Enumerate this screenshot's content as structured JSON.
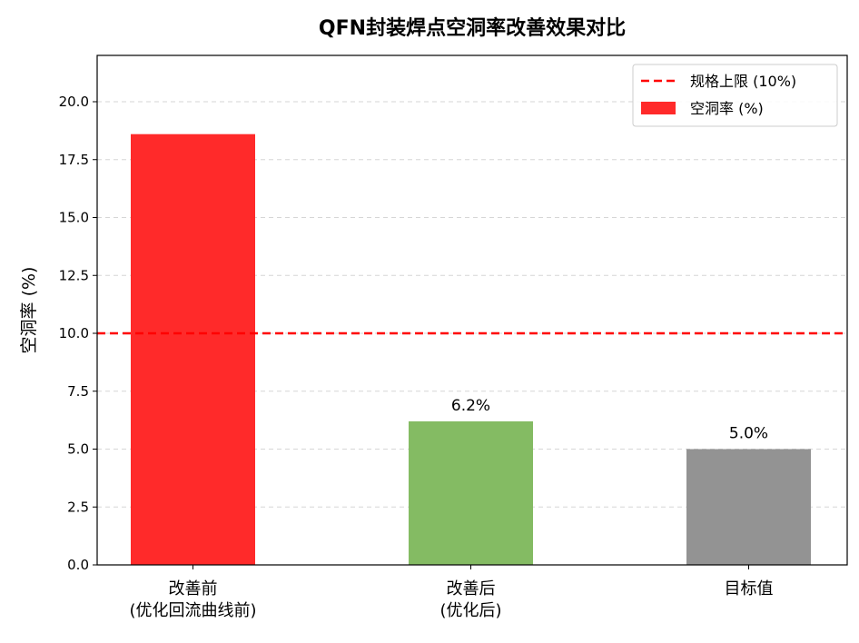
{
  "chart_data": {
    "type": "bar",
    "title": "QFN封装焊点空洞率改善效果对比",
    "ylabel": "空洞率 (%)",
    "xlabel": "",
    "ylim": [
      0,
      22
    ],
    "yticks": [
      "0.0",
      "2.5",
      "5.0",
      "7.5",
      "10.0",
      "12.5",
      "15.0",
      "17.5",
      "20.0"
    ],
    "grid": "horizontal dashed",
    "categories": [
      [
        "改善前",
        "(优化回流曲线前)"
      ],
      [
        "改善后",
        "(优化后)"
      ],
      [
        "目标值"
      ]
    ],
    "series": [
      {
        "name": "空洞率 (%)",
        "values": [
          18.6,
          6.2,
          5.0
        ],
        "colors": [
          "#ff2a2a",
          "#84bb63",
          "#939393"
        ],
        "data_labels": [
          "",
          "6.2%",
          "5.0%"
        ]
      }
    ],
    "reference_line": {
      "name": "规格上限 (10%)",
      "value": 10,
      "color": "#ff0000",
      "style": "dashed"
    },
    "legend": {
      "placement": "top-right",
      "entries": [
        {
          "label": "规格上限 (10%)",
          "kind": "dashed-line",
          "color": "#ff0000"
        },
        {
          "label": "空洞率 (%)",
          "kind": "patch",
          "color": "#ff2a2a"
        }
      ]
    }
  }
}
